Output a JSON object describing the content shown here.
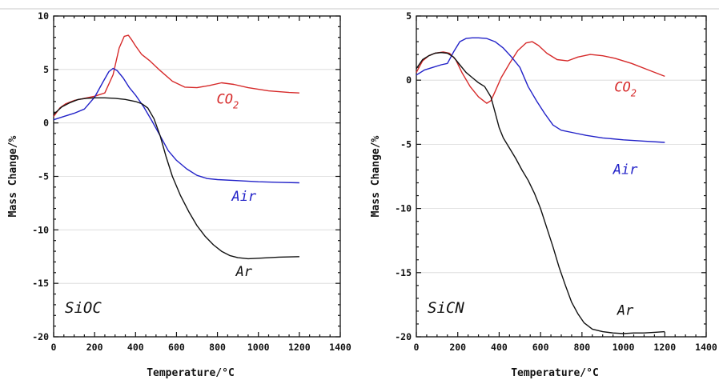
{
  "colors": {
    "CO2": "#d62a2a",
    "Air": "#2222c8",
    "Ar": "#111111"
  },
  "chart_data": [
    {
      "type": "line",
      "annotation": "SiOC",
      "xlabel": "Temperature/°C",
      "ylabel": "Mass Change/%",
      "xlim": [
        0,
        1400
      ],
      "ylim": [
        -20,
        10
      ],
      "x_ticks": [
        0,
        200,
        400,
        600,
        800,
        1000,
        1200,
        1400
      ],
      "y_ticks": [
        -20,
        -15,
        -10,
        -5,
        0,
        5,
        10
      ],
      "grid": "horizontal",
      "series": [
        {
          "name": "CO",
          "subscript": "2",
          "color_key": "CO2",
          "label_pos": [
            850,
            1.8
          ],
          "x": [
            0,
            30,
            60,
            100,
            150,
            200,
            250,
            290,
            320,
            345,
            365,
            380,
            400,
            430,
            470,
            520,
            580,
            640,
            700,
            760,
            820,
            880,
            950,
            1050,
            1150,
            1200
          ],
          "y": [
            0.6,
            1.4,
            1.8,
            2.1,
            2.3,
            2.5,
            2.8,
            4.5,
            7.0,
            8.1,
            8.2,
            7.8,
            7.2,
            6.4,
            5.8,
            4.9,
            3.9,
            3.35,
            3.3,
            3.5,
            3.75,
            3.6,
            3.3,
            3.0,
            2.85,
            2.8
          ]
        },
        {
          "name": "Air",
          "color_key": "Air",
          "label_pos": [
            930,
            -7.3
          ],
          "x": [
            0,
            50,
            100,
            150,
            200,
            240,
            270,
            290,
            310,
            340,
            370,
            400,
            440,
            480,
            520,
            560,
            600,
            650,
            700,
            750,
            800,
            900,
            1000,
            1100,
            1200
          ],
          "y": [
            0.3,
            0.6,
            0.9,
            1.3,
            2.4,
            3.8,
            4.8,
            5.1,
            4.9,
            4.2,
            3.3,
            2.6,
            1.5,
            0.2,
            -1.2,
            -2.6,
            -3.5,
            -4.3,
            -4.9,
            -5.2,
            -5.3,
            -5.4,
            -5.5,
            -5.55,
            -5.6
          ]
        },
        {
          "name": "Ar",
          "color_key": "Ar",
          "label_pos": [
            930,
            -14.3
          ],
          "x": [
            0,
            40,
            80,
            120,
            160,
            200,
            250,
            300,
            350,
            400,
            430,
            460,
            490,
            520,
            550,
            580,
            620,
            660,
            700,
            740,
            780,
            820,
            860,
            900,
            950,
            1000,
            1100,
            1200
          ],
          "y": [
            0.8,
            1.5,
            1.9,
            2.2,
            2.3,
            2.35,
            2.35,
            2.3,
            2.2,
            2.0,
            1.8,
            1.4,
            0.4,
            -1.2,
            -3.2,
            -5.0,
            -6.8,
            -8.3,
            -9.6,
            -10.6,
            -11.4,
            -12.0,
            -12.4,
            -12.6,
            -12.7,
            -12.65,
            -12.55,
            -12.5
          ]
        }
      ]
    },
    {
      "type": "line",
      "annotation": "SiCN",
      "xlabel": "Temperature/°C",
      "ylabel": "Mass Change/%",
      "xlim": [
        0,
        1400
      ],
      "ylim": [
        -20,
        5
      ],
      "x_ticks": [
        0,
        200,
        400,
        600,
        800,
        1000,
        1200,
        1400
      ],
      "y_ticks": [
        -20,
        -15,
        -10,
        -5,
        0,
        5
      ],
      "grid": "horizontal",
      "series": [
        {
          "name": "CO",
          "subscript": "2",
          "color_key": "CO2",
          "label_pos": [
            1010,
            -0.9
          ],
          "x": [
            0,
            30,
            60,
            90,
            130,
            160,
            190,
            220,
            260,
            300,
            340,
            360,
            380,
            410,
            450,
            490,
            530,
            560,
            590,
            630,
            680,
            730,
            780,
            840,
            900,
            960,
            1040,
            1120,
            1200
          ],
          "y": [
            0.6,
            1.5,
            1.9,
            2.1,
            2.2,
            2.1,
            1.6,
            0.6,
            -0.5,
            -1.3,
            -1.8,
            -1.6,
            -0.9,
            0.2,
            1.3,
            2.3,
            2.9,
            3.0,
            2.7,
            2.1,
            1.6,
            1.5,
            1.8,
            2.0,
            1.9,
            1.7,
            1.3,
            0.8,
            0.3
          ]
        },
        {
          "name": "Air",
          "color_key": "Air",
          "label_pos": [
            1010,
            -7.3
          ],
          "x": [
            0,
            40,
            80,
            120,
            150,
            180,
            210,
            240,
            270,
            300,
            340,
            380,
            420,
            460,
            500,
            540,
            580,
            620,
            660,
            700,
            760,
            820,
            900,
            1000,
            1100,
            1200
          ],
          "y": [
            0.4,
            0.8,
            1.0,
            1.2,
            1.3,
            2.2,
            3.0,
            3.25,
            3.3,
            3.3,
            3.25,
            3.0,
            2.5,
            1.8,
            1.0,
            -0.5,
            -1.6,
            -2.6,
            -3.5,
            -3.9,
            -4.1,
            -4.3,
            -4.5,
            -4.65,
            -4.75,
            -4.85
          ]
        },
        {
          "name": "Ar",
          "color_key": "Ar",
          "label_pos": [
            1010,
            -18.3
          ],
          "x": [
            0,
            30,
            60,
            90,
            120,
            150,
            180,
            210,
            240,
            270,
            300,
            330,
            360,
            380,
            400,
            420,
            450,
            480,
            510,
            540,
            570,
            600,
            630,
            660,
            690,
            720,
            750,
            780,
            810,
            850,
            900,
            950,
            1000,
            1050,
            1100,
            1150,
            1200
          ],
          "y": [
            0.9,
            1.6,
            1.9,
            2.1,
            2.15,
            2.1,
            1.8,
            1.2,
            0.6,
            0.2,
            -0.2,
            -0.5,
            -1.3,
            -2.5,
            -3.7,
            -4.5,
            -5.3,
            -6.1,
            -7.0,
            -7.8,
            -8.8,
            -10.0,
            -11.5,
            -13.0,
            -14.6,
            -16.0,
            -17.3,
            -18.2,
            -18.9,
            -19.4,
            -19.6,
            -19.7,
            -19.75,
            -19.7,
            -19.7,
            -19.65,
            -19.6
          ]
        }
      ]
    }
  ]
}
